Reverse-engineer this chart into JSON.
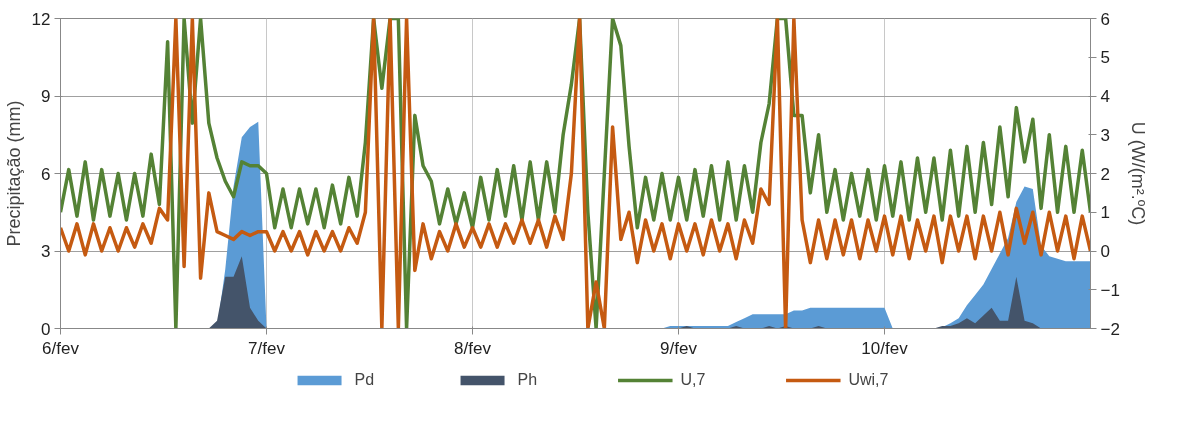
{
  "chart_data": {
    "type": "line",
    "ylabel": "Precipitação (mm)",
    "y2label": "U (W/(m².ºC)",
    "x": [
      6.0,
      6.04,
      6.08,
      6.12,
      6.16,
      6.2,
      6.24,
      6.28,
      6.32,
      6.36,
      6.4,
      6.44,
      6.48,
      6.52,
      6.56,
      6.6,
      6.64,
      6.68,
      6.72,
      6.76,
      6.8,
      6.84,
      6.88,
      6.92,
      6.96,
      7.0,
      7.04,
      7.08,
      7.12,
      7.16,
      7.2,
      7.24,
      7.28,
      7.32,
      7.36,
      7.4,
      7.44,
      7.48,
      7.52,
      7.56,
      7.6,
      7.64,
      7.68,
      7.72,
      7.76,
      7.8,
      7.84,
      7.88,
      7.92,
      7.96,
      8.0,
      8.04,
      8.08,
      8.12,
      8.16,
      8.2,
      8.24,
      8.28,
      8.32,
      8.36,
      8.4,
      8.44,
      8.48,
      8.52,
      8.56,
      8.6,
      8.64,
      8.68,
      8.72,
      8.76,
      8.8,
      8.84,
      8.88,
      8.92,
      8.96,
      9.0,
      9.04,
      9.08,
      9.12,
      9.16,
      9.2,
      9.24,
      9.28,
      9.32,
      9.36,
      9.4,
      9.44,
      9.48,
      9.52,
      9.56,
      9.6,
      9.64,
      9.68,
      9.72,
      9.76,
      9.8,
      9.84,
      9.88,
      9.92,
      9.96,
      10.0,
      10.04,
      10.08,
      10.12,
      10.16,
      10.2,
      10.24,
      10.28,
      10.32,
      10.36,
      10.4,
      10.44,
      10.48,
      10.52,
      10.56,
      10.6,
      10.64,
      10.68,
      10.72,
      10.76,
      10.8,
      10.84,
      10.88,
      10.92,
      10.96,
      11.0
    ],
    "xlim": [
      6.0,
      11.0
    ],
    "xticks": [
      {
        "value": 6,
        "label": "6/fev"
      },
      {
        "value": 7,
        "label": "7/fev"
      },
      {
        "value": 8,
        "label": "8/fev"
      },
      {
        "value": 9,
        "label": "9/fev"
      },
      {
        "value": 10,
        "label": "10/fev"
      }
    ],
    "ylim": [
      0,
      12
    ],
    "yticks": [
      0,
      3,
      6,
      9,
      12
    ],
    "y2lim": [
      -2,
      6
    ],
    "y2ticks": [
      -2,
      -1,
      0,
      1,
      2,
      3,
      4,
      5,
      6
    ],
    "grid": true,
    "legend": "bottom",
    "line_style": "solid",
    "marker": "none",
    "series": [
      {
        "name": "Pd",
        "type": "area",
        "color": "#5b9bd5",
        "values": [
          0,
          0,
          0,
          0,
          0,
          0,
          0,
          0,
          0,
          0,
          0,
          0,
          0,
          0,
          0,
          0,
          0,
          0,
          0,
          0,
          2.3,
          5.5,
          7.4,
          7.8,
          8.0,
          0,
          0,
          0,
          0,
          0,
          0,
          0,
          0,
          0,
          0,
          0,
          0,
          0,
          0,
          0,
          0,
          0,
          0,
          0,
          0,
          0,
          0,
          0,
          0,
          0,
          0,
          0,
          0,
          0,
          0,
          0,
          0,
          0,
          0,
          0,
          0,
          0,
          0,
          0,
          0,
          0,
          0,
          0,
          0,
          0,
          0,
          0,
          0,
          0,
          0.1,
          0.1,
          0.1,
          0.1,
          0.1,
          0.1,
          0.1,
          0.1,
          0.25,
          0.4,
          0.55,
          0.55,
          0.55,
          0.55,
          0.55,
          0.7,
          0.7,
          0.8,
          0.8,
          0.8,
          0.8,
          0.8,
          0.8,
          0.8,
          0.8,
          0.8,
          0.8,
          0,
          0,
          0,
          0,
          0,
          0,
          0.05,
          0.2,
          0.4,
          0.9,
          1.3,
          1.7,
          2.3,
          2.9,
          3.5,
          4.9,
          5.5,
          5.4,
          3.2,
          2.8,
          2.7,
          2.6,
          2.6,
          2.6,
          2.6
        ]
      },
      {
        "name": "Ph",
        "type": "area",
        "color": "#44546a",
        "values": [
          0,
          0,
          0,
          0,
          0,
          0,
          0,
          0,
          0,
          0,
          0,
          0,
          0,
          0,
          0,
          0,
          0,
          0,
          0,
          0.3,
          2.0,
          2.0,
          2.8,
          0.8,
          0.3,
          0,
          0,
          0,
          0,
          0,
          0,
          0,
          0,
          0,
          0,
          0,
          0,
          0,
          0,
          0,
          0,
          0,
          0,
          0,
          0,
          0,
          0,
          0,
          0,
          0,
          0,
          0,
          0,
          0,
          0,
          0,
          0,
          0,
          0,
          0,
          0,
          0,
          0,
          0,
          0,
          0,
          0,
          0,
          0,
          0,
          0,
          0,
          0,
          0,
          0,
          0,
          0.1,
          0,
          0,
          0,
          0,
          0,
          0.1,
          0,
          0,
          0,
          0.1,
          0,
          0.1,
          0,
          0,
          0,
          0.1,
          0,
          0,
          0,
          0,
          0,
          0,
          0,
          0,
          0,
          0,
          0,
          0,
          0,
          0,
          0.1,
          0.1,
          0.2,
          0.4,
          0.2,
          0.5,
          0.8,
          0.3,
          0.3,
          2.0,
          0.3,
          0.2,
          0,
          0,
          0,
          0,
          0,
          0,
          0
        ]
      },
      {
        "name": "U,7",
        "axis": "y2",
        "color": "#548235",
        "values": [
          1.0,
          2.1,
          0.9,
          2.3,
          0.8,
          2.1,
          0.9,
          2.0,
          0.8,
          2.0,
          0.9,
          2.5,
          1.2,
          5.4,
          -2.0,
          6.0,
          3.3,
          6.0,
          3.3,
          2.4,
          1.8,
          1.4,
          2.3,
          2.2,
          2.2,
          2.0,
          0.6,
          1.6,
          0.6,
          1.6,
          0.7,
          1.6,
          0.6,
          1.7,
          0.7,
          1.9,
          0.9,
          2.8,
          6.0,
          4.2,
          6.0,
          6.0,
          -2.0,
          3.5,
          2.2,
          1.8,
          0.7,
          1.6,
          0.7,
          1.5,
          0.6,
          1.9,
          0.8,
          2.1,
          0.9,
          2.2,
          0.8,
          2.3,
          0.8,
          2.3,
          1.0,
          3.0,
          4.3,
          6.0,
          1.0,
          -2.0,
          2.0,
          6.0,
          5.3,
          2.7,
          0.6,
          1.9,
          0.8,
          2.0,
          0.8,
          1.9,
          0.8,
          2.1,
          0.9,
          2.2,
          0.8,
          2.3,
          0.8,
          2.2,
          1.0,
          2.8,
          3.8,
          6.0,
          6.0,
          3.5,
          3.5,
          1.5,
          3.0,
          1.0,
          2.1,
          0.8,
          2.0,
          0.9,
          2.1,
          0.8,
          2.2,
          0.9,
          2.3,
          0.8,
          2.4,
          1.0,
          2.4,
          0.8,
          2.6,
          0.9,
          2.7,
          1.0,
          2.8,
          1.2,
          3.2,
          1.4,
          3.7,
          2.3,
          3.4,
          1.1,
          3.0,
          1.0,
          2.7,
          1.0,
          2.6,
          1.0
        ]
      },
      {
        "name": "Uwi,7",
        "axis": "y2",
        "color": "#c55a11",
        "values": [
          0.6,
          0.0,
          0.7,
          -0.1,
          0.7,
          0.0,
          0.6,
          0.0,
          0.6,
          0.1,
          0.7,
          0.2,
          1.1,
          0.8,
          6.0,
          -0.4,
          6.0,
          -0.7,
          1.5,
          0.5,
          0.4,
          0.3,
          0.5,
          0.4,
          0.5,
          0.5,
          0.0,
          0.5,
          0.0,
          0.5,
          -0.1,
          0.5,
          0.0,
          0.5,
          0.0,
          0.6,
          0.2,
          1.0,
          6.0,
          -2.0,
          6.0,
          -2.0,
          6.0,
          -0.5,
          0.7,
          -0.2,
          0.5,
          0.0,
          0.7,
          0.1,
          0.6,
          0.1,
          0.7,
          0.1,
          0.7,
          0.2,
          0.8,
          0.2,
          0.8,
          0.1,
          0.9,
          0.3,
          2.0,
          6.0,
          -2.0,
          -0.8,
          -2.0,
          3.2,
          0.3,
          1.0,
          -0.3,
          0.8,
          0.0,
          0.7,
          -0.2,
          0.7,
          0.0,
          0.7,
          -0.1,
          0.8,
          0.0,
          0.7,
          -0.2,
          0.8,
          0.2,
          1.6,
          1.2,
          6.0,
          -2.0,
          6.0,
          0.8,
          -0.3,
          0.8,
          -0.2,
          0.8,
          -0.1,
          0.8,
          -0.2,
          0.8,
          0.0,
          0.9,
          -0.1,
          0.9,
          -0.2,
          0.8,
          0.0,
          0.9,
          -0.3,
          0.9,
          0.0,
          0.9,
          -0.2,
          0.9,
          0.0,
          1.0,
          -0.1,
          1.1,
          0.2,
          1.0,
          -0.1,
          1.0,
          0.0,
          0.9,
          -0.2,
          0.9,
          0.0
        ]
      }
    ]
  }
}
